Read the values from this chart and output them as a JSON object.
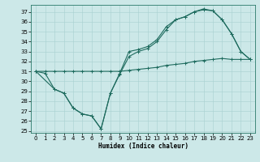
{
  "xlabel": "Humidex (Indice chaleur)",
  "bg_color": "#cce8e8",
  "line_color": "#1e6b5e",
  "xlim": [
    -0.5,
    23.5
  ],
  "ylim": [
    24.8,
    37.7
  ],
  "yticks": [
    25,
    26,
    27,
    28,
    29,
    30,
    31,
    32,
    33,
    34,
    35,
    36,
    37
  ],
  "xticks": [
    0,
    1,
    2,
    3,
    4,
    5,
    6,
    7,
    8,
    9,
    10,
    11,
    12,
    13,
    14,
    15,
    16,
    17,
    18,
    19,
    20,
    21,
    22,
    23
  ],
  "line1_x": [
    0,
    1,
    2,
    3,
    4,
    5,
    6,
    7,
    8,
    9,
    10,
    11,
    12,
    13,
    14,
    15,
    16,
    17,
    18,
    19,
    20,
    21,
    22,
    23
  ],
  "line1_y": [
    31.0,
    31.0,
    31.0,
    31.0,
    31.0,
    31.0,
    31.0,
    31.0,
    31.0,
    31.0,
    31.1,
    31.2,
    31.3,
    31.4,
    31.6,
    31.7,
    31.8,
    32.0,
    32.1,
    32.2,
    32.3,
    32.2,
    32.2,
    32.2
  ],
  "line2_x": [
    0,
    1,
    2,
    3,
    4,
    5,
    6,
    7,
    8,
    9,
    10,
    11,
    12,
    13,
    14,
    15,
    16,
    17,
    18,
    19,
    20,
    21,
    22,
    23
  ],
  "line2_y": [
    31.0,
    30.8,
    29.2,
    28.8,
    27.3,
    26.7,
    26.5,
    25.2,
    28.8,
    30.8,
    33.0,
    33.2,
    33.5,
    34.2,
    35.5,
    36.2,
    36.5,
    37.0,
    37.2,
    37.1,
    36.2,
    34.8,
    33.0,
    32.2
  ],
  "line3_x": [
    0,
    2,
    3,
    4,
    5,
    6,
    7,
    8,
    9,
    10,
    11,
    12,
    13,
    14,
    15,
    16,
    17,
    18,
    19,
    20,
    21,
    22,
    23
  ],
  "line3_y": [
    31.0,
    29.2,
    28.8,
    27.3,
    26.7,
    26.5,
    25.2,
    28.8,
    30.7,
    32.5,
    33.0,
    33.3,
    34.0,
    35.2,
    36.2,
    36.5,
    37.0,
    37.3,
    37.1,
    36.2,
    34.8,
    33.0,
    32.2
  ]
}
